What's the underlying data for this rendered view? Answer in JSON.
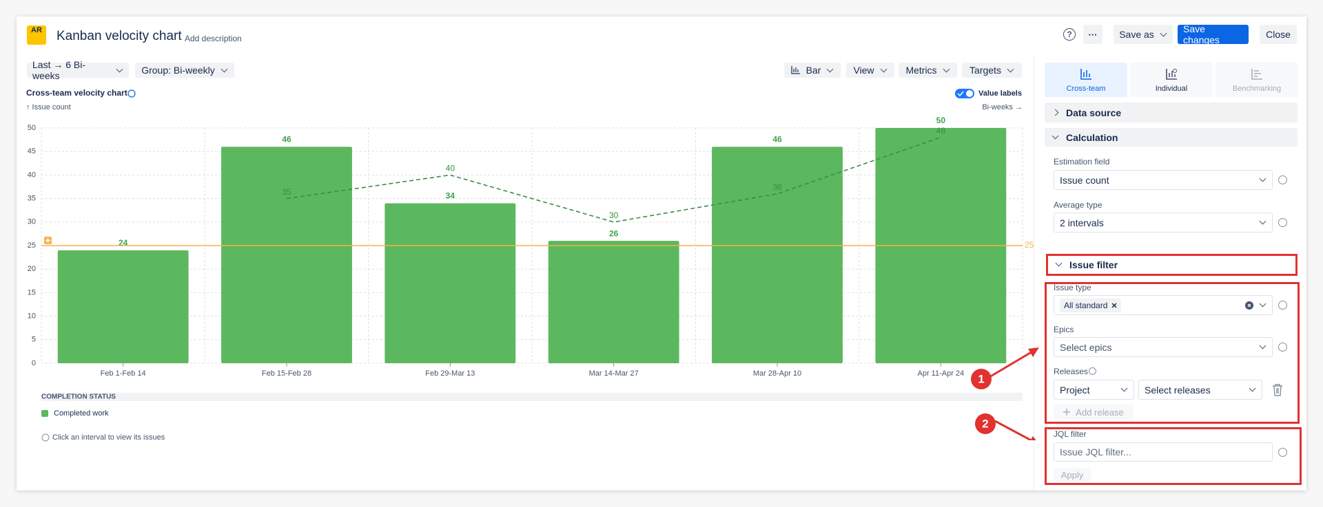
{
  "header": {
    "logo": "AR",
    "title": "Kanban velocity chart",
    "add_description": "Add description",
    "help": "?",
    "more": "···",
    "save_as": "Save as",
    "save_changes": "Save changes",
    "close": "Close"
  },
  "toolbar": {
    "range": "Last → 6 Bi-weeks",
    "group": "Group: Bi-weekly",
    "chart_type": "Bar",
    "view": "View",
    "metrics": "Metrics",
    "targets": "Targets"
  },
  "chart_data": {
    "type": "bar",
    "title": "Cross-team velocity chart",
    "y_axis_label": "↑ Issue count",
    "x_axis_label": "Bi-weeks →",
    "value_labels_toggle": "Value labels",
    "categories": [
      "Feb 1-Feb 14",
      "Feb 15-Feb 28",
      "Feb 29-Mar 13",
      "Mar 14-Mar 27",
      "Mar 28-Apr 10",
      "Apr 11-Apr 24"
    ],
    "series": [
      {
        "name": "Completed work",
        "color": "#5cb85f",
        "values": [
          24,
          46,
          34,
          26,
          46,
          50
        ]
      }
    ],
    "average_line": {
      "color": "#3b8c42",
      "values": [
        null,
        35,
        40,
        30,
        36,
        48
      ]
    },
    "target": {
      "value": 25,
      "color": "#f5b14c"
    },
    "ylim": [
      0,
      50
    ],
    "yticks": [
      0,
      5,
      10,
      15,
      20,
      25,
      30,
      35,
      40,
      45,
      50
    ],
    "grid": true,
    "legend_title": "COMPLETION STATUS",
    "note": "Click an interval to view its issues"
  },
  "sidebar": {
    "tabs": [
      "Cross-team",
      "Individual",
      "Benchmarking"
    ],
    "data_source": "Data source",
    "calculation": "Calculation",
    "estimation_field_label": "Estimation field",
    "estimation_field": "Issue count",
    "average_type_label": "Average type",
    "average_type": "2 intervals",
    "issue_filter": "Issue filter",
    "issue_type_label": "Issue type",
    "issue_type_chip": "All standard",
    "epics_label": "Epics",
    "epics_placeholder": "Select epics",
    "releases_label": "Releases",
    "releases_project": "Project",
    "releases_placeholder": "Select releases",
    "add_release": "Add release",
    "jql_label": "JQL filter",
    "jql_placeholder": "Issue JQL filter...",
    "apply": "Apply"
  },
  "annotations": [
    "1",
    "2"
  ]
}
